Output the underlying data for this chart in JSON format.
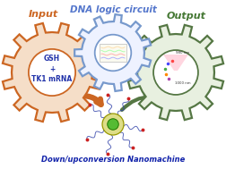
{
  "title": "DNA logic circuit",
  "input_label": "Input",
  "output_label": "Output",
  "bottom_label": "Down/upconversion Nanomachine",
  "input_text": "GSH\n+\nTK1 mRNA",
  "background_color": "#ffffff",
  "gear_left_color": "#CC6622",
  "gear_left_fill": "#F5DEC8",
  "gear_center_color": "#7799CC",
  "gear_center_fill": "#EEF2FF",
  "gear_right_color": "#557744",
  "gear_right_fill": "#E8F0E0",
  "input_label_color": "#CC6622",
  "output_label_color": "#447733",
  "title_color": "#5577CC",
  "bottom_label_color": "#1122AA",
  "arrow_left_color": "#CC6622",
  "arrow_right_color": "#557744",
  "nano_outer_color": "#DDDD88",
  "nano_inner_color": "#55BB33",
  "dna_strand_color": "#3344AA",
  "dna_tip_color": "#CC2222"
}
